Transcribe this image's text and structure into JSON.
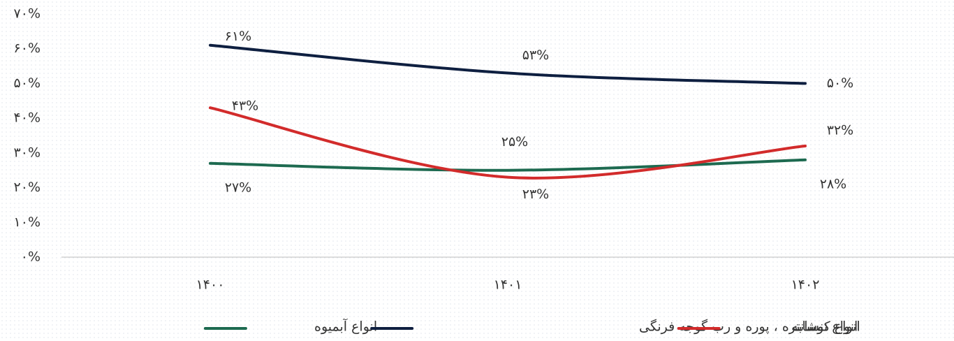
{
  "chart_data": {
    "type": "line",
    "categories": [
      "۱۴۰۰",
      "۱۴۰۱",
      "۱۴۰۲"
    ],
    "series": [
      {
        "name": "انواع آبمیوه",
        "color": "#1d6a50",
        "values": [
          27,
          25,
          28
        ],
        "value_labels": [
          "۲۷%",
          "۲۵%",
          "۲۸%"
        ]
      },
      {
        "name": "انواع کنسانتره ، پوره و رب گوجه فرنگی",
        "color": "#0e1f40",
        "values": [
          61,
          53,
          50
        ],
        "value_labels": [
          "۶۱%",
          "۵۳%",
          "۵۰%"
        ]
      },
      {
        "name": "انواع نوشابه",
        "color": "#d22b2b",
        "values": [
          43,
          23,
          32
        ],
        "value_labels": [
          "۴۳%",
          "۲۳%",
          "۳۲%"
        ]
      }
    ],
    "ylim": [
      0,
      70
    ],
    "yticks": [
      {
        "value": 0,
        "label": "۰%"
      },
      {
        "value": 10,
        "label": "۱۰%"
      },
      {
        "value": 20,
        "label": "۲۰%"
      },
      {
        "value": 30,
        "label": "۳۰%"
      },
      {
        "value": 40,
        "label": "۴۰%"
      },
      {
        "value": 50,
        "label": "۵۰%"
      },
      {
        "value": 60,
        "label": "۶۰%"
      },
      {
        "value": 70,
        "label": "۷۰%"
      }
    ],
    "grid": false,
    "legend": "bottom"
  }
}
